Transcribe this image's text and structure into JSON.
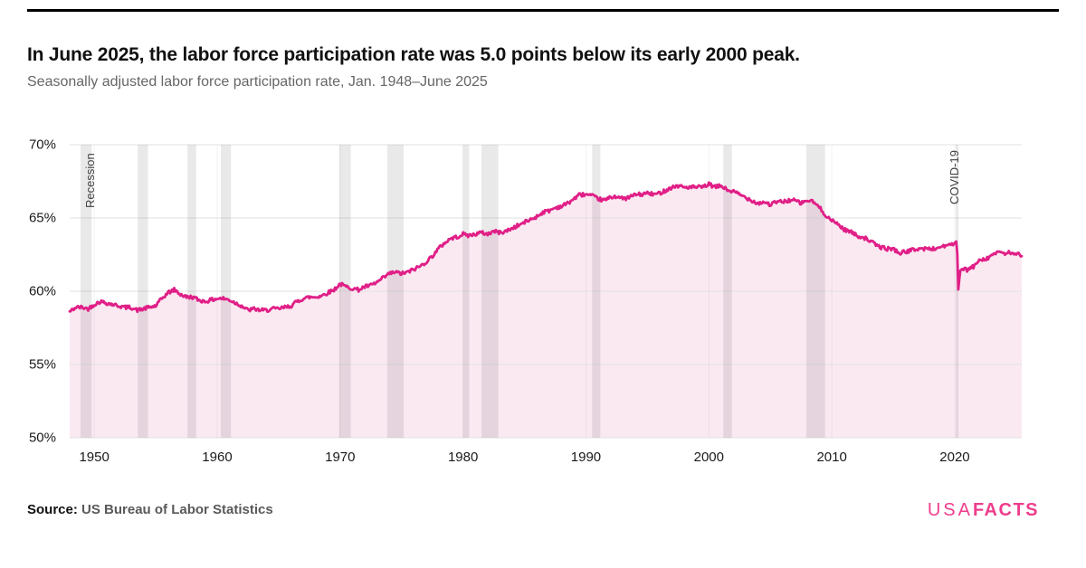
{
  "header": {
    "title": "In June 2025, the labor force participation rate was 5.0 points below its early 2000 peak.",
    "subtitle": "Seasonally adjusted labor force participation rate, Jan. 1948–June 2025"
  },
  "footer": {
    "source_label": "Source:",
    "source_text": "US Bureau of Labor Statistics",
    "logo_usa": "USA",
    "logo_facts": "FACTS"
  },
  "chart_data": {
    "type": "area",
    "title": "Seasonally adjusted labor force participation rate",
    "unit": "%",
    "xlim": [
      1948,
      2025.45
    ],
    "ylim": [
      50,
      70
    ],
    "y_ticks": [
      {
        "value": 70,
        "label": "70%"
      },
      {
        "value": 65,
        "label": "65%"
      },
      {
        "value": 60,
        "label": "60%"
      },
      {
        "value": 55,
        "label": "55%"
      },
      {
        "value": 50,
        "label": "50%"
      }
    ],
    "x_ticks": [
      {
        "value": 1950,
        "label": "1950"
      },
      {
        "value": 1960,
        "label": "1960"
      },
      {
        "value": 1970,
        "label": "1970"
      },
      {
        "value": 1980,
        "label": "1980"
      },
      {
        "value": 1990,
        "label": "1990"
      },
      {
        "value": 2000,
        "label": "2000"
      },
      {
        "value": 2010,
        "label": "2010"
      },
      {
        "value": 2020,
        "label": "2020"
      }
    ],
    "annotations": {
      "recession_label": "Recession",
      "covid_label": "COVID-19"
    },
    "recessions": [
      [
        1948.88,
        1949.79
      ],
      [
        1953.54,
        1954.37
      ],
      [
        1957.58,
        1958.29
      ],
      [
        1960.29,
        1961.12
      ],
      [
        1969.92,
        1970.87
      ],
      [
        1973.83,
        1975.17
      ],
      [
        1980.0,
        1980.5
      ],
      [
        1981.5,
        1982.87
      ],
      [
        1990.5,
        1991.17
      ],
      [
        2001.17,
        2001.87
      ],
      [
        2007.92,
        2009.45
      ],
      [
        2020.08,
        2020.29
      ]
    ],
    "colors": {
      "line": "#e01f87",
      "fill": "#fbe9f2",
      "recession_band": "rgba(0,0,0,0.085)",
      "gridline": "#e2e2e2",
      "brand_pink": "#ee3d8c"
    },
    "series": [
      {
        "name": "Labor force participation rate",
        "points": [
          [
            1948,
            58.6
          ],
          [
            1948.5,
            58.9
          ],
          [
            1949,
            58.9
          ],
          [
            1949.5,
            58.8
          ],
          [
            1950,
            59.1
          ],
          [
            1950.5,
            59.3
          ],
          [
            1951,
            59.2
          ],
          [
            1951.5,
            59.1
          ],
          [
            1952,
            59.0
          ],
          [
            1952.5,
            58.9
          ],
          [
            1953,
            58.9
          ],
          [
            1953.5,
            58.7
          ],
          [
            1954,
            58.8
          ],
          [
            1954.5,
            58.9
          ],
          [
            1955,
            59.0
          ],
          [
            1955.5,
            59.5
          ],
          [
            1956,
            59.9
          ],
          [
            1956.5,
            60.1
          ],
          [
            1957,
            59.8
          ],
          [
            1957.5,
            59.6
          ],
          [
            1958,
            59.6
          ],
          [
            1958.5,
            59.4
          ],
          [
            1959,
            59.3
          ],
          [
            1959.5,
            59.4
          ],
          [
            1960,
            59.5
          ],
          [
            1960.5,
            59.5
          ],
          [
            1961,
            59.4
          ],
          [
            1961.5,
            59.2
          ],
          [
            1962,
            59.0
          ],
          [
            1962.5,
            58.7
          ],
          [
            1963,
            58.8
          ],
          [
            1963.5,
            58.7
          ],
          [
            1964,
            58.7
          ],
          [
            1964.5,
            58.8
          ],
          [
            1965,
            58.8
          ],
          [
            1965.5,
            58.9
          ],
          [
            1966,
            59.0
          ],
          [
            1966.5,
            59.3
          ],
          [
            1967,
            59.5
          ],
          [
            1967.5,
            59.6
          ],
          [
            1968,
            59.6
          ],
          [
            1968.5,
            59.7
          ],
          [
            1969,
            59.9
          ],
          [
            1969.5,
            60.1
          ],
          [
            1970,
            60.5
          ],
          [
            1970.5,
            60.3
          ],
          [
            1971,
            60.2
          ],
          [
            1971.5,
            60.1
          ],
          [
            1972,
            60.3
          ],
          [
            1972.5,
            60.4
          ],
          [
            1973,
            60.6
          ],
          [
            1973.5,
            60.9
          ],
          [
            1974,
            61.2
          ],
          [
            1974.5,
            61.3
          ],
          [
            1975,
            61.2
          ],
          [
            1975.5,
            61.3
          ],
          [
            1976,
            61.5
          ],
          [
            1976.5,
            61.7
          ],
          [
            1977,
            62.0
          ],
          [
            1977.5,
            62.4
          ],
          [
            1978,
            62.9
          ],
          [
            1978.5,
            63.3
          ],
          [
            1979,
            63.6
          ],
          [
            1979.5,
            63.7
          ],
          [
            1980,
            63.9
          ],
          [
            1980.5,
            63.8
          ],
          [
            1981,
            63.9
          ],
          [
            1981.5,
            64.0
          ],
          [
            1982,
            63.9
          ],
          [
            1982.5,
            64.1
          ],
          [
            1983,
            64.0
          ],
          [
            1983.5,
            64.1
          ],
          [
            1984,
            64.3
          ],
          [
            1984.5,
            64.5
          ],
          [
            1985,
            64.7
          ],
          [
            1985.5,
            64.9
          ],
          [
            1986,
            65.1
          ],
          [
            1986.5,
            65.4
          ],
          [
            1987,
            65.5
          ],
          [
            1987.5,
            65.7
          ],
          [
            1988,
            65.8
          ],
          [
            1988.5,
            66.0
          ],
          [
            1989,
            66.3
          ],
          [
            1989.5,
            66.6
          ],
          [
            1990,
            66.6
          ],
          [
            1990.5,
            66.5
          ],
          [
            1991,
            66.3
          ],
          [
            1991.5,
            66.2
          ],
          [
            1992,
            66.4
          ],
          [
            1992.5,
            66.5
          ],
          [
            1993,
            66.3
          ],
          [
            1993.5,
            66.4
          ],
          [
            1994,
            66.6
          ],
          [
            1994.5,
            66.6
          ],
          [
            1995,
            66.7
          ],
          [
            1995.5,
            66.6
          ],
          [
            1996,
            66.7
          ],
          [
            1996.5,
            66.9
          ],
          [
            1997,
            67.1
          ],
          [
            1997.5,
            67.2
          ],
          [
            1998,
            67.1
          ],
          [
            1998.5,
            67.1
          ],
          [
            1999,
            67.1
          ],
          [
            1999.5,
            67.1
          ],
          [
            2000,
            67.3
          ],
          [
            2000.5,
            67.1
          ],
          [
            2001,
            67.2
          ],
          [
            2001.5,
            66.9
          ],
          [
            2002,
            66.8
          ],
          [
            2002.5,
            66.6
          ],
          [
            2003,
            66.4
          ],
          [
            2003.5,
            66.2
          ],
          [
            2004,
            66.0
          ],
          [
            2004.5,
            66.1
          ],
          [
            2005,
            65.9
          ],
          [
            2005.5,
            66.1
          ],
          [
            2006,
            66.1
          ],
          [
            2006.5,
            66.2
          ],
          [
            2007,
            66.2
          ],
          [
            2007.5,
            66.0
          ],
          [
            2008,
            66.2
          ],
          [
            2008.5,
            66.1
          ],
          [
            2009,
            65.7
          ],
          [
            2009.5,
            65.2
          ],
          [
            2010,
            64.8
          ],
          [
            2010.5,
            64.6
          ],
          [
            2011,
            64.2
          ],
          [
            2011.5,
            64.1
          ],
          [
            2012,
            63.8
          ],
          [
            2012.5,
            63.7
          ],
          [
            2013,
            63.5
          ],
          [
            2013.5,
            63.2
          ],
          [
            2014,
            63.0
          ],
          [
            2014.5,
            62.9
          ],
          [
            2015,
            62.9
          ],
          [
            2015.5,
            62.6
          ],
          [
            2016,
            62.7
          ],
          [
            2016.5,
            62.8
          ],
          [
            2017,
            62.9
          ],
          [
            2017.5,
            62.9
          ],
          [
            2018,
            62.9
          ],
          [
            2018.5,
            62.9
          ],
          [
            2019,
            63.1
          ],
          [
            2019.5,
            63.1
          ],
          [
            2020.04,
            63.3
          ],
          [
            2020.12,
            63.4
          ],
          [
            2020.21,
            62.6
          ],
          [
            2020.29,
            60.1
          ],
          [
            2020.37,
            60.8
          ],
          [
            2020.45,
            61.4
          ],
          [
            2020.6,
            61.5
          ],
          [
            2020.8,
            61.6
          ],
          [
            2021,
            61.4
          ],
          [
            2021.3,
            61.6
          ],
          [
            2021.6,
            61.7
          ],
          [
            2022,
            62.2
          ],
          [
            2022.4,
            62.2
          ],
          [
            2022.8,
            62.3
          ],
          [
            2023,
            62.5
          ],
          [
            2023.4,
            62.6
          ],
          [
            2023.8,
            62.7
          ],
          [
            2024,
            62.5
          ],
          [
            2024.4,
            62.7
          ],
          [
            2024.8,
            62.5
          ],
          [
            2025,
            62.4
          ],
          [
            2025.2,
            62.6
          ],
          [
            2025.45,
            62.3
          ]
        ]
      }
    ]
  }
}
